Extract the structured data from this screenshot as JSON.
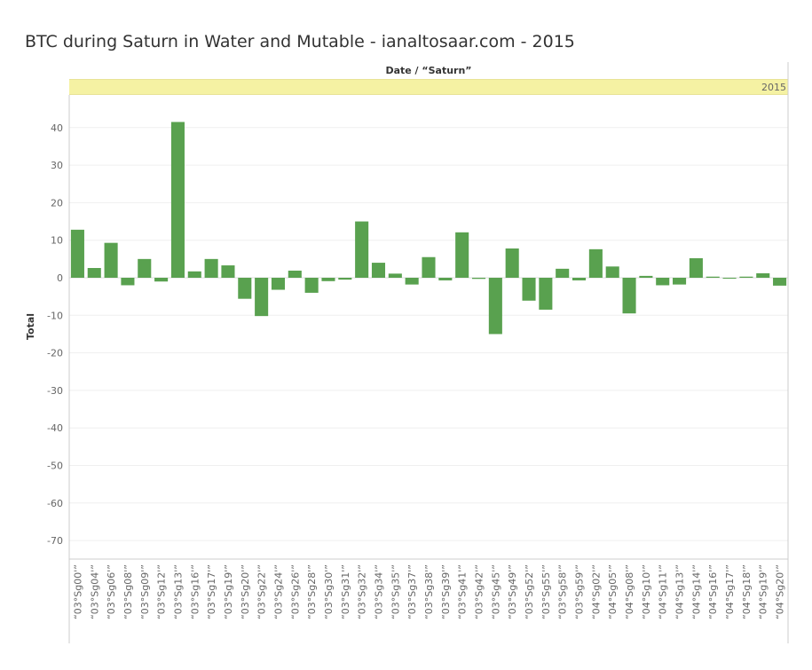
{
  "title": "BTC during Saturn in Water and Mutable - ianaltosaar.com - 2015",
  "header_label": "Date / “Saturn”",
  "year_label": "2015",
  "chart_data": {
    "type": "bar",
    "title": "BTC during Saturn in Water and Mutable - ianaltosaar.com - 2015",
    "xlabel": "",
    "ylabel": "Total",
    "ylim": [
      -75,
      47
    ],
    "yticks": [
      40,
      30,
      20,
      10,
      0,
      -10,
      -20,
      -30,
      -40,
      -50,
      -60,
      -70
    ],
    "grid": true,
    "bar_color": "#59a14f",
    "categories": [
      "“03°Sg00'”",
      "“03°Sg04'”",
      "“03°Sg06'”",
      "“03°Sg08'”",
      "“03°Sg09'”",
      "“03°Sg12'”",
      "“03°Sg13'”",
      "“03°Sg16'”",
      "“03°Sg17'”",
      "“03°Sg19'”",
      "“03°Sg20'”",
      "“03°Sg22'”",
      "“03°Sg24'”",
      "“03°Sg26'”",
      "“03°Sg28'”",
      "“03°Sg30'”",
      "“03°Sg31'”",
      "“03°Sg32'”",
      "“03°Sg34'”",
      "“03°Sg35'”",
      "“03°Sg37'”",
      "“03°Sg38'”",
      "“03°Sg39'”",
      "“03°Sg41'”",
      "“03°Sg42'”",
      "“03°Sg45'”",
      "“03°Sg49'”",
      "“03°Sg52'”",
      "“03°Sg55'”",
      "“03°Sg58'”",
      "“03°Sg59'”",
      "“04°Sg02'”",
      "“04°Sg05'”",
      "“04°Sg08'”",
      "“04°Sg10'”",
      "“04°Sg11'”",
      "“04°Sg13'”",
      "“04°Sg14'”",
      "“04°Sg16'”",
      "“04°Sg17'”",
      "“04°Sg18'”",
      "“04°Sg19'”",
      "“04°Sg20'”"
    ],
    "values": [
      12.8,
      2.6,
      9.3,
      -2.0,
      5.0,
      -1.0,
      41.5,
      1.7,
      5.0,
      3.3,
      -5.6,
      -10.2,
      -3.2,
      1.9,
      -4.0,
      -0.9,
      -0.5,
      15.0,
      4.0,
      1.1,
      -1.8,
      5.5,
      -0.7,
      12.1,
      -0.3,
      -15.0,
      7.8,
      -6.1,
      -8.5,
      2.4,
      -0.7,
      7.6,
      3.0,
      -9.5,
      0.5,
      -2.0,
      -1.8,
      5.2,
      0.3,
      -0.2,
      0.3,
      1.2,
      -2.1
    ]
  }
}
